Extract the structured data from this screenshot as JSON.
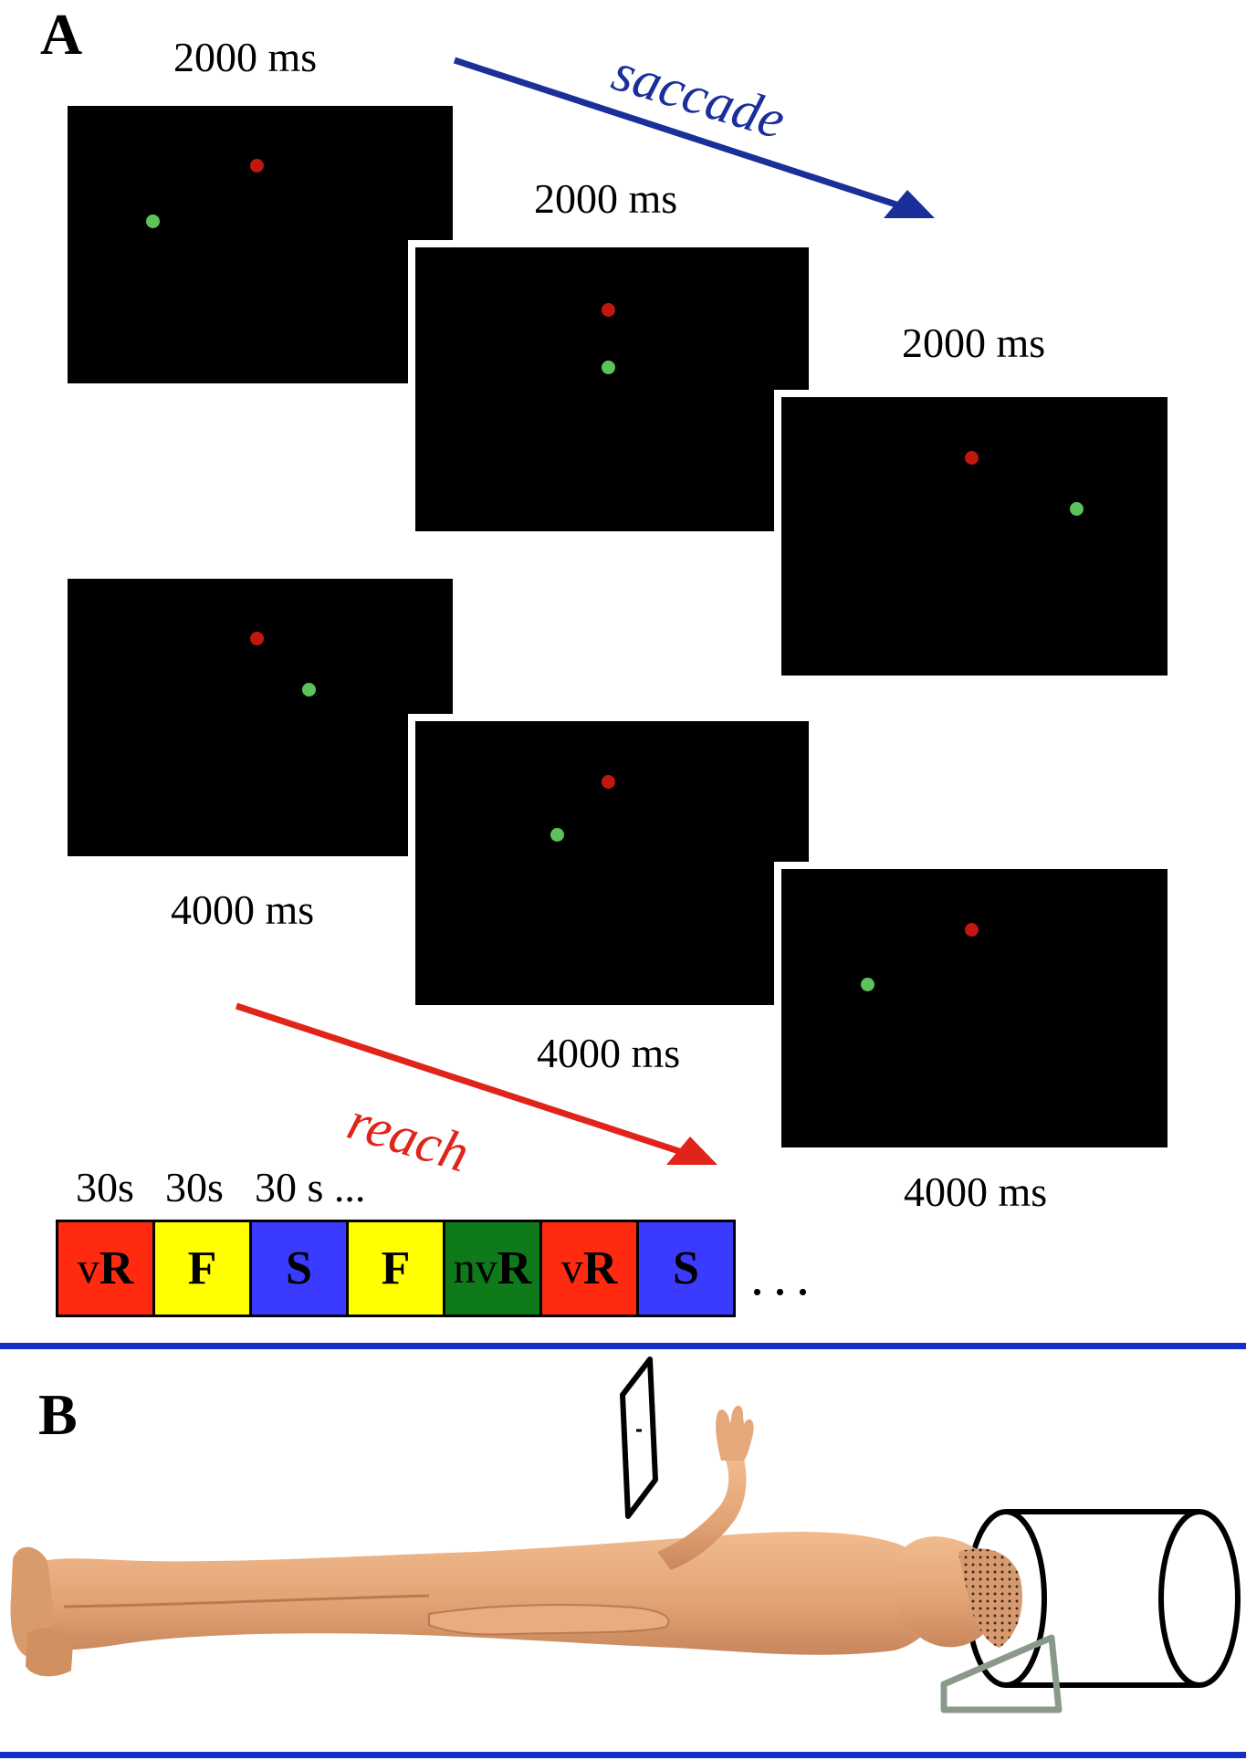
{
  "panel_a": {
    "label": "A",
    "saccade_row": {
      "arrow_label": "saccade",
      "arrow_color": "#1a2f9a",
      "screens": [
        {
          "duration": "2000 ms"
        },
        {
          "duration": "2000 ms"
        },
        {
          "duration": "2000 ms"
        }
      ]
    },
    "reach_row": {
      "arrow_label": "reach",
      "arrow_color": "#e02419",
      "screens": [
        {
          "duration": "4000 ms"
        },
        {
          "duration": "4000 ms"
        },
        {
          "duration": "4000 ms"
        }
      ]
    },
    "dot_colors": {
      "fixation": "#c0180e",
      "target": "#5cc35a"
    },
    "block_timeline": {
      "durations": [
        "30s",
        "30s",
        "30 s ..."
      ],
      "blocks": [
        {
          "prefix": "v",
          "label": "R",
          "color": "#ff2a10"
        },
        {
          "prefix": "",
          "label": "F",
          "color": "#ffff00"
        },
        {
          "prefix": "",
          "label": "S",
          "color": "#3b3bff"
        },
        {
          "prefix": "",
          "label": "F",
          "color": "#ffff00"
        },
        {
          "prefix": "nv",
          "label": "R",
          "color": "#0e7a1a"
        },
        {
          "prefix": "v",
          "label": "R",
          "color": "#ff2a10"
        },
        {
          "prefix": "",
          "label": "S",
          "color": "#3b3bff"
        }
      ],
      "ellipsis": "..."
    }
  },
  "panel_b": {
    "label": "B",
    "divider_color": "#1530c8",
    "skin_color": "#e6a77a"
  }
}
